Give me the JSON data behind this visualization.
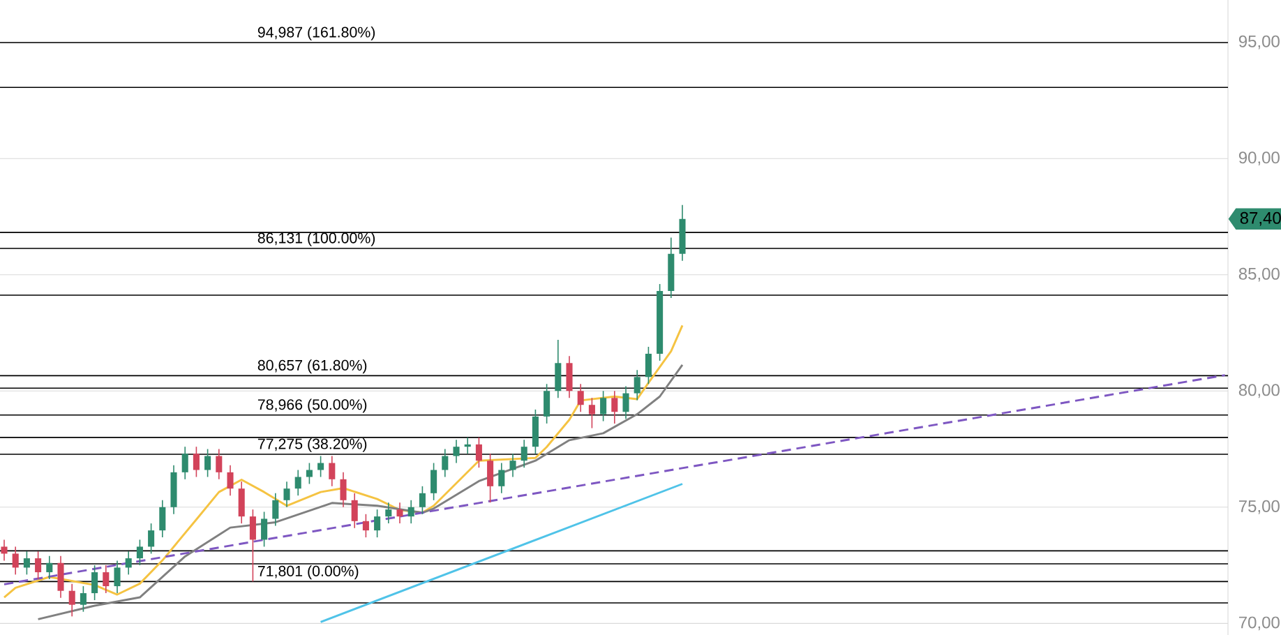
{
  "chart_data": {
    "type": "candlestick",
    "categories": [
      null,
      null,
      null,
      null,
      null,
      null,
      null,
      null,
      null,
      null,
      null,
      null,
      null,
      null,
      null,
      null,
      null,
      null,
      null,
      null,
      null,
      null,
      null,
      null,
      null,
      null,
      null,
      null,
      null,
      null,
      null,
      null,
      null,
      null,
      null,
      null,
      null,
      null,
      null,
      null,
      null,
      null,
      null,
      null,
      null,
      null,
      null,
      null,
      null,
      null,
      null,
      null,
      null,
      null,
      null,
      null,
      null,
      null,
      null,
      null,
      null,
      null,
      null,
      null,
      null,
      null,
      null,
      null,
      null,
      null,
      null,
      null,
      null,
      null,
      null,
      null,
      null,
      null,
      null,
      null,
      null,
      null,
      null,
      null,
      null,
      null,
      null,
      null,
      null,
      null,
      null,
      null,
      null,
      null,
      null,
      null,
      null,
      null,
      null,
      null,
      null,
      null,
      null,
      null,
      null,
      null,
      null,
      null,
      null
    ],
    "ohlc": [
      [
        73.3,
        73.6,
        72.7,
        73.0
      ],
      [
        73.0,
        73.3,
        72.1,
        72.4
      ],
      [
        72.4,
        73.1,
        72.1,
        72.8
      ],
      [
        72.8,
        73.1,
        71.9,
        72.2
      ],
      [
        72.2,
        72.9,
        71.9,
        72.6
      ],
      [
        72.6,
        72.9,
        71.1,
        71.4
      ],
      [
        71.4,
        71.7,
        70.3,
        70.8
      ],
      [
        70.8,
        71.6,
        70.5,
        71.3
      ],
      [
        71.3,
        72.5,
        71.0,
        72.2
      ],
      [
        72.2,
        72.5,
        71.3,
        71.6
      ],
      [
        71.6,
        72.7,
        71.3,
        72.4
      ],
      [
        72.4,
        73.1,
        72.1,
        72.8
      ],
      [
        72.8,
        73.6,
        72.5,
        73.3
      ],
      [
        73.3,
        74.3,
        73.0,
        74.0
      ],
      [
        74.0,
        75.3,
        73.7,
        75.0
      ],
      [
        75.0,
        76.8,
        74.7,
        76.5
      ],
      [
        76.5,
        77.6,
        76.2,
        77.3
      ],
      [
        77.3,
        77.6,
        76.3,
        76.6
      ],
      [
        76.6,
        77.5,
        76.3,
        77.2
      ],
      [
        77.2,
        77.5,
        76.2,
        76.5
      ],
      [
        76.5,
        76.8,
        75.5,
        75.8
      ],
      [
        75.8,
        76.1,
        74.3,
        74.6
      ],
      [
        74.6,
        74.9,
        71.8,
        73.6
      ],
      [
        73.6,
        74.8,
        73.3,
        74.5
      ],
      [
        74.5,
        75.6,
        74.2,
        75.3
      ],
      [
        75.3,
        76.1,
        75.0,
        75.8
      ],
      [
        75.8,
        76.6,
        75.5,
        76.3
      ],
      [
        76.3,
        76.9,
        76.0,
        76.6
      ],
      [
        76.6,
        77.2,
        76.3,
        76.9
      ],
      [
        76.9,
        77.2,
        75.9,
        76.2
      ],
      [
        76.2,
        76.5,
        75.0,
        75.3
      ],
      [
        75.3,
        75.6,
        74.1,
        74.4
      ],
      [
        74.4,
        74.7,
        73.7,
        74.0
      ],
      [
        74.0,
        74.9,
        73.7,
        74.6
      ],
      [
        74.6,
        75.2,
        74.3,
        74.9
      ],
      [
        74.9,
        75.2,
        74.3,
        74.6
      ],
      [
        74.6,
        75.3,
        74.3,
        75.0
      ],
      [
        75.0,
        75.9,
        74.7,
        75.6
      ],
      [
        75.6,
        76.9,
        75.3,
        76.6
      ],
      [
        76.6,
        77.5,
        76.3,
        77.2
      ],
      [
        77.2,
        77.9,
        76.9,
        77.6
      ],
      [
        77.6,
        78.0,
        77.3,
        77.7
      ],
      [
        77.7,
        78.0,
        76.7,
        77.0
      ],
      [
        77.0,
        77.3,
        75.2,
        75.9
      ],
      [
        75.9,
        76.9,
        75.6,
        76.6
      ],
      [
        76.6,
        77.3,
        76.3,
        77.0
      ],
      [
        77.0,
        77.9,
        76.7,
        77.6
      ],
      [
        77.6,
        79.2,
        77.3,
        78.9
      ],
      [
        78.9,
        80.3,
        78.6,
        80.0
      ],
      [
        80.0,
        82.2,
        79.7,
        81.2
      ],
      [
        81.2,
        81.5,
        79.7,
        80.0
      ],
      [
        80.0,
        80.3,
        79.1,
        79.4
      ],
      [
        79.4,
        79.7,
        78.4,
        79.0
      ],
      [
        79.0,
        80.0,
        78.7,
        79.7
      ],
      [
        79.7,
        80.0,
        78.6,
        79.1
      ],
      [
        79.1,
        80.2,
        78.8,
        79.9
      ],
      [
        79.9,
        80.9,
        79.6,
        80.6
      ],
      [
        80.6,
        81.9,
        80.3,
        81.6
      ],
      [
        81.6,
        84.6,
        81.3,
        84.3
      ],
      [
        84.3,
        86.6,
        84.0,
        85.9
      ],
      [
        85.9,
        88.0,
        85.6,
        87.4
      ],
      null,
      null,
      null,
      null,
      null,
      null,
      null,
      null,
      null,
      null,
      null,
      null,
      null,
      null,
      null,
      null,
      null,
      null,
      null,
      null,
      null,
      null,
      null,
      null,
      null,
      null,
      null,
      null,
      null,
      null,
      null,
      null,
      null,
      null,
      null,
      null,
      null,
      null,
      null,
      null,
      null,
      null,
      null,
      null,
      null,
      null,
      null,
      null
    ],
    "series": [
      {
        "type": "line",
        "color": "#f5c342",
        "values": [
          71.12,
          71.53,
          null,
          null,
          72.0,
          null,
          null,
          null,
          71.65,
          null,
          71.24,
          null,
          71.71,
          null,
          72.71,
          null,
          null,
          74.47,
          null,
          75.65,
          null,
          76.18,
          null,
          75.65,
          null,
          75.06,
          null,
          null,
          75.65,
          null,
          75.82,
          null,
          null,
          75.35,
          null,
          74.88,
          null,
          74.76,
          75.06,
          null,
          null,
          null,
          77.0,
          null,
          null,
          null,
          null,
          77.12,
          77.59,
          null,
          78.76,
          79.59,
          null,
          null,
          79.76,
          null,
          79.65,
          80.35,
          null,
          81.71,
          82.82,
          null,
          null,
          null,
          null,
          null,
          null,
          null,
          null,
          null,
          null,
          null,
          null,
          null,
          null,
          null,
          null,
          null,
          null,
          null,
          null,
          null,
          null,
          null,
          null,
          null,
          null,
          null,
          null,
          null,
          null,
          null,
          null,
          null,
          null,
          null,
          null,
          null,
          null,
          null,
          null,
          null,
          null,
          null,
          null,
          null,
          null,
          null,
          null
        ]
      },
      {
        "type": "line",
        "color": "#808080",
        "values": [
          null,
          null,
          null,
          70.18,
          null,
          null,
          null,
          null,
          70.76,
          null,
          null,
          null,
          71.12,
          null,
          null,
          null,
          72.88,
          null,
          null,
          null,
          74.12,
          null,
          null,
          null,
          74.35,
          null,
          null,
          null,
          null,
          75.18,
          null,
          null,
          null,
          75.06,
          null,
          null,
          null,
          74.76,
          74.94,
          null,
          null,
          null,
          76.12,
          null,
          null,
          null,
          null,
          77.0,
          null,
          null,
          77.88,
          null,
          null,
          78.18,
          null,
          null,
          79.0,
          null,
          79.76,
          null,
          81.12,
          null,
          null,
          null,
          null,
          null,
          null,
          null,
          null,
          null,
          null,
          null,
          null,
          null,
          null,
          null,
          null,
          null,
          null,
          null,
          null,
          null,
          null,
          null,
          null,
          null,
          null,
          null,
          null,
          null,
          null,
          null,
          null,
          null,
          null,
          null,
          null,
          null,
          null,
          null,
          null,
          null,
          null,
          null,
          null,
          null,
          null,
          null,
          null
        ]
      },
      {
        "type": "line",
        "color": "#7e57c2",
        "line_style": "dashed",
        "values": [
          71.68,
          null,
          null,
          null,
          null,
          null,
          null,
          null,
          null,
          null,
          null,
          null,
          null,
          null,
          null,
          null,
          null,
          null,
          null,
          null,
          null,
          null,
          null,
          null,
          null,
          null,
          null,
          null,
          null,
          null,
          null,
          null,
          null,
          null,
          null,
          null,
          null,
          null,
          null,
          null,
          null,
          null,
          null,
          null,
          null,
          null,
          null,
          null,
          null,
          null,
          null,
          null,
          null,
          null,
          null,
          null,
          null,
          null,
          null,
          null,
          null,
          null,
          null,
          null,
          null,
          null,
          null,
          null,
          null,
          null,
          null,
          null,
          null,
          null,
          null,
          null,
          null,
          null,
          null,
          null,
          null,
          null,
          null,
          null,
          null,
          null,
          null,
          null,
          null,
          null,
          null,
          null,
          null,
          null,
          null,
          null,
          null,
          null,
          null,
          null,
          null,
          null,
          null,
          null,
          null,
          null,
          null,
          null,
          80.68
        ]
      },
      {
        "type": "line",
        "color": "#4fc3e8",
        "values": [
          null,
          null,
          null,
          null,
          null,
          null,
          null,
          null,
          null,
          null,
          null,
          null,
          null,
          null,
          null,
          null,
          null,
          null,
          null,
          null,
          null,
          null,
          null,
          null,
          null,
          null,
          null,
          null,
          70.06,
          null,
          null,
          null,
          null,
          null,
          null,
          null,
          null,
          null,
          null,
          null,
          null,
          null,
          null,
          null,
          null,
          null,
          null,
          null,
          null,
          null,
          null,
          null,
          null,
          null,
          null,
          null,
          null,
          null,
          null,
          null,
          76.0,
          null,
          null,
          null,
          null,
          null,
          null,
          null,
          null,
          null,
          null,
          null,
          null,
          null,
          null,
          null,
          null,
          null,
          null,
          null,
          null,
          null,
          null,
          null,
          null,
          null,
          null,
          null,
          null,
          null,
          null,
          null,
          null,
          null,
          null,
          null,
          null,
          null,
          null,
          null,
          null,
          null,
          null,
          null,
          null,
          null,
          null,
          null,
          null
        ]
      }
    ],
    "ylim": [
      69.5,
      96.82
    ],
    "yticks": [
      {
        "value": 70,
        "label": "70,00"
      },
      {
        "value": 75,
        "label": "75,00"
      },
      {
        "value": 80,
        "label": "80,00"
      },
      {
        "value": 85,
        "label": "85,00"
      },
      {
        "value": 90,
        "label": "90,00"
      },
      {
        "value": 95,
        "label": "95,00"
      }
    ],
    "tick_labels": "y",
    "grid": "y",
    "marker": "none",
    "ref_lines": [
      {
        "axis": "y",
        "value": 94.987,
        "label": "94,987 (161.80%)",
        "color": "#000000"
      },
      {
        "axis": "y",
        "value": 93.06,
        "color": "#000000"
      },
      {
        "axis": "y",
        "value": 86.82,
        "color": "#000000"
      },
      {
        "axis": "y",
        "value": 86.131,
        "label": "86,131 (100.00%)",
        "color": "#000000"
      },
      {
        "axis": "y",
        "value": 84.12,
        "color": "#000000"
      },
      {
        "axis": "y",
        "value": 80.657,
        "label": "80,657 (61.80%)",
        "color": "#000000"
      },
      {
        "axis": "y",
        "value": 80.12,
        "color": "#000000"
      },
      {
        "axis": "y",
        "value": 78.966,
        "label": "78,966 (50.00%)",
        "color": "#000000"
      },
      {
        "axis": "y",
        "value": 78.0,
        "color": "#000000"
      },
      {
        "axis": "y",
        "value": 77.275,
        "label": "77,275 (38.20%)",
        "color": "#000000"
      },
      {
        "axis": "y",
        "value": 73.12,
        "color": "#000000"
      },
      {
        "axis": "y",
        "value": 72.56,
        "color": "#000000"
      },
      {
        "axis": "y",
        "value": 71.801,
        "label": "71,801 (0.00%)",
        "color": "#000000"
      },
      {
        "axis": "y",
        "value": 70.88,
        "color": "#000000"
      }
    ],
    "annotations": [
      "87,40"
    ]
  }
}
